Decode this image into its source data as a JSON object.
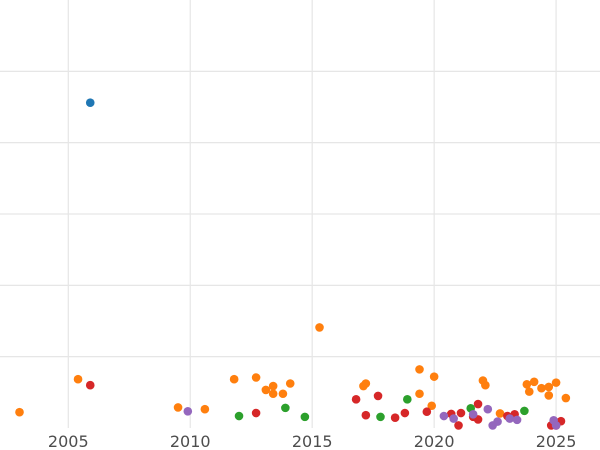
{
  "chart_data": {
    "type": "scatter",
    "title": "",
    "xlabel": "",
    "ylabel": "",
    "xlim": [
      2002.2,
      2026.8
    ],
    "ylim": [
      0,
      1
    ],
    "x_ticks": [
      2005,
      2010,
      2015,
      2020,
      2025
    ],
    "x_tick_labels": [
      "2005",
      "2010",
      "2015",
      "2020",
      "2025"
    ],
    "y_gridlines": [
      0.1667,
      0.3333,
      0.5,
      0.6667,
      0.8333
    ],
    "y_tick_labels": [],
    "grid": true,
    "legend": "none",
    "series": [
      {
        "color": "#1f77b4",
        "points": [
          {
            "x": 2005.9,
            "y": 0.76
          }
        ]
      },
      {
        "color": "#ff7f0e",
        "points": [
          {
            "x": 2003.0,
            "y": 0.037
          },
          {
            "x": 2005.4,
            "y": 0.114
          },
          {
            "x": 2009.5,
            "y": 0.048
          },
          {
            "x": 2010.6,
            "y": 0.044
          },
          {
            "x": 2011.8,
            "y": 0.114
          },
          {
            "x": 2012.7,
            "y": 0.118
          },
          {
            "x": 2013.1,
            "y": 0.089
          },
          {
            "x": 2013.4,
            "y": 0.08
          },
          {
            "x": 2013.4,
            "y": 0.098
          },
          {
            "x": 2013.8,
            "y": 0.08
          },
          {
            "x": 2014.1,
            "y": 0.104
          },
          {
            "x": 2015.3,
            "y": 0.235
          },
          {
            "x": 2017.1,
            "y": 0.098
          },
          {
            "x": 2017.2,
            "y": 0.104
          },
          {
            "x": 2019.4,
            "y": 0.137
          },
          {
            "x": 2019.4,
            "y": 0.08
          },
          {
            "x": 2019.9,
            "y": 0.052
          },
          {
            "x": 2020.0,
            "y": 0.12
          },
          {
            "x": 2022.0,
            "y": 0.111
          },
          {
            "x": 2022.1,
            "y": 0.1
          },
          {
            "x": 2022.7,
            "y": 0.034
          },
          {
            "x": 2023.8,
            "y": 0.102
          },
          {
            "x": 2023.9,
            "y": 0.085
          },
          {
            "x": 2024.1,
            "y": 0.108
          },
          {
            "x": 2024.4,
            "y": 0.093
          },
          {
            "x": 2024.7,
            "y": 0.096
          },
          {
            "x": 2024.7,
            "y": 0.076
          },
          {
            "x": 2025.0,
            "y": 0.106
          },
          {
            "x": 2025.4,
            "y": 0.07
          }
        ]
      },
      {
        "color": "#2ca02c",
        "points": [
          {
            "x": 2012.0,
            "y": 0.028
          },
          {
            "x": 2013.9,
            "y": 0.047
          },
          {
            "x": 2014.7,
            "y": 0.026
          },
          {
            "x": 2017.8,
            "y": 0.026
          },
          {
            "x": 2018.9,
            "y": 0.067
          },
          {
            "x": 2021.5,
            "y": 0.046
          },
          {
            "x": 2023.7,
            "y": 0.04
          }
        ]
      },
      {
        "color": "#d62728",
        "points": [
          {
            "x": 2005.9,
            "y": 0.1
          },
          {
            "x": 2012.7,
            "y": 0.035
          },
          {
            "x": 2016.8,
            "y": 0.067
          },
          {
            "x": 2017.2,
            "y": 0.03
          },
          {
            "x": 2017.7,
            "y": 0.075
          },
          {
            "x": 2018.4,
            "y": 0.024
          },
          {
            "x": 2018.8,
            "y": 0.035
          },
          {
            "x": 2019.7,
            "y": 0.038
          },
          {
            "x": 2020.7,
            "y": 0.033
          },
          {
            "x": 2021.0,
            "y": 0.006
          },
          {
            "x": 2021.1,
            "y": 0.035
          },
          {
            "x": 2021.6,
            "y": 0.026
          },
          {
            "x": 2021.8,
            "y": 0.056
          },
          {
            "x": 2021.8,
            "y": 0.02
          },
          {
            "x": 2023.0,
            "y": 0.028
          },
          {
            "x": 2023.3,
            "y": 0.032
          },
          {
            "x": 2024.8,
            "y": 0.006
          },
          {
            "x": 2025.0,
            "y": 0.006
          },
          {
            "x": 2025.2,
            "y": 0.016
          }
        ]
      },
      {
        "color": "#9467bd",
        "points": [
          {
            "x": 2009.9,
            "y": 0.039
          },
          {
            "x": 2020.4,
            "y": 0.028
          },
          {
            "x": 2020.8,
            "y": 0.022
          },
          {
            "x": 2021.6,
            "y": 0.032
          },
          {
            "x": 2022.2,
            "y": 0.044
          },
          {
            "x": 2022.4,
            "y": 0.006
          },
          {
            "x": 2022.6,
            "y": 0.015
          },
          {
            "x": 2023.1,
            "y": 0.022
          },
          {
            "x": 2023.4,
            "y": 0.019
          },
          {
            "x": 2024.9,
            "y": 0.018
          },
          {
            "x": 2025.0,
            "y": 0.006
          }
        ]
      }
    ]
  }
}
